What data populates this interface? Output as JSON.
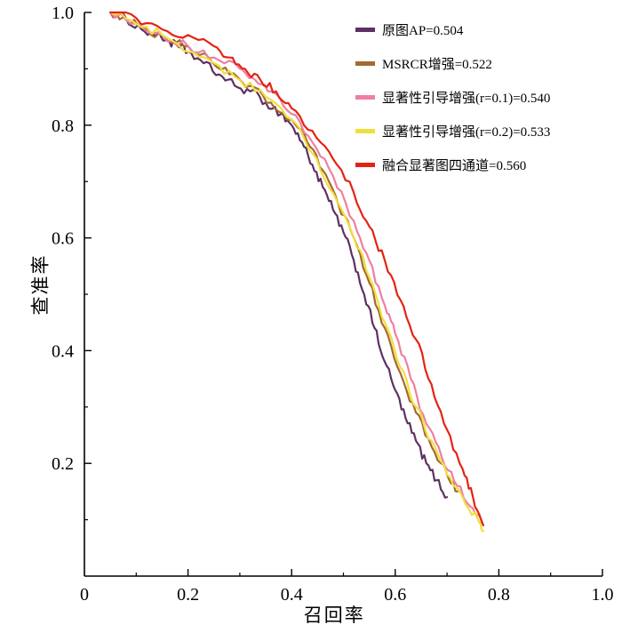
{
  "figure": {
    "xlabel": "召回率",
    "ylabel": "查准率"
  },
  "chart_data": {
    "type": "line",
    "title": "",
    "xlabel": "召回率",
    "ylabel": "查准率",
    "xlim": [
      0,
      1.0
    ],
    "ylim": [
      0,
      1.0
    ],
    "grid": false,
    "legend_position": "upper-right-inside",
    "x_ticks": [
      {
        "label": "0",
        "v": 0
      },
      {
        "label": "0.2",
        "v": 0.2
      },
      {
        "label": "0.4",
        "v": 0.4
      },
      {
        "label": "0.6",
        "v": 0.6
      },
      {
        "label": "0.8",
        "v": 0.8
      },
      {
        "label": "1.0",
        "v": 1.0
      }
    ],
    "y_ticks": [
      {
        "label": "0.2",
        "v": 0.2
      },
      {
        "label": "0.4",
        "v": 0.4
      },
      {
        "label": "0.6",
        "v": 0.6
      },
      {
        "label": "0.8",
        "v": 0.8
      },
      {
        "label": "1.0",
        "v": 1.0
      }
    ],
    "series": [
      {
        "name": "原图AP=0.504",
        "ap": 0.504,
        "color": "#5e3163",
        "x": [
          0.05,
          0.08,
          0.11,
          0.14,
          0.16,
          0.18,
          0.2,
          0.23,
          0.26,
          0.29,
          0.32,
          0.35,
          0.38,
          0.4,
          0.42,
          0.44,
          0.46,
          0.48,
          0.5,
          0.52,
          0.54,
          0.56,
          0.58,
          0.6,
          0.62,
          0.64,
          0.66,
          0.68,
          0.7
        ],
        "y": [
          1.0,
          0.99,
          0.97,
          0.96,
          0.95,
          0.94,
          0.93,
          0.91,
          0.89,
          0.87,
          0.86,
          0.84,
          0.82,
          0.8,
          0.77,
          0.73,
          0.69,
          0.65,
          0.61,
          0.56,
          0.5,
          0.44,
          0.38,
          0.33,
          0.28,
          0.24,
          0.2,
          0.17,
          0.14
        ]
      },
      {
        "name": "MSRCR增强=0.522",
        "ap": 0.522,
        "color": "#a5692f",
        "x": [
          0.05,
          0.08,
          0.12,
          0.16,
          0.2,
          0.24,
          0.28,
          0.32,
          0.36,
          0.4,
          0.43,
          0.46,
          0.49,
          0.52,
          0.55,
          0.58,
          0.61,
          0.64,
          0.67,
          0.7,
          0.72
        ],
        "y": [
          1.0,
          0.99,
          0.97,
          0.95,
          0.94,
          0.92,
          0.89,
          0.87,
          0.84,
          0.81,
          0.77,
          0.72,
          0.66,
          0.6,
          0.52,
          0.44,
          0.36,
          0.29,
          0.23,
          0.18,
          0.15
        ]
      },
      {
        "name": "显著性引导增强(r=0.1)=0.540",
        "ap": 0.54,
        "color": "#ee7fa2",
        "x": [
          0.05,
          0.1,
          0.15,
          0.2,
          0.25,
          0.3,
          0.33,
          0.36,
          0.4,
          0.44,
          0.48,
          0.52,
          0.55,
          0.58,
          0.6,
          0.63,
          0.66,
          0.69,
          0.72,
          0.75,
          0.77
        ],
        "y": [
          1.0,
          0.98,
          0.96,
          0.94,
          0.92,
          0.9,
          0.88,
          0.86,
          0.82,
          0.77,
          0.71,
          0.63,
          0.56,
          0.48,
          0.43,
          0.35,
          0.27,
          0.21,
          0.16,
          0.12,
          0.09
        ]
      },
      {
        "name": "显著性引导增强(r=0.2)=0.533",
        "ap": 0.533,
        "color": "#f0e03c",
        "x": [
          0.05,
          0.1,
          0.15,
          0.2,
          0.25,
          0.3,
          0.35,
          0.4,
          0.44,
          0.48,
          0.52,
          0.55,
          0.58,
          0.61,
          0.64,
          0.67,
          0.7,
          0.73,
          0.76,
          0.77
        ],
        "y": [
          1.0,
          0.98,
          0.96,
          0.93,
          0.91,
          0.88,
          0.85,
          0.81,
          0.75,
          0.68,
          0.6,
          0.53,
          0.45,
          0.37,
          0.3,
          0.24,
          0.18,
          0.14,
          0.1,
          0.08
        ]
      },
      {
        "name": "融合显著图四通道=0.560",
        "ap": 0.56,
        "color": "#e42313",
        "x": [
          0.05,
          0.1,
          0.15,
          0.2,
          0.25,
          0.28,
          0.31,
          0.34,
          0.37,
          0.4,
          0.44,
          0.48,
          0.52,
          0.55,
          0.58,
          0.61,
          0.64,
          0.67,
          0.7,
          0.73,
          0.75,
          0.77
        ],
        "y": [
          1.0,
          0.99,
          0.97,
          0.96,
          0.94,
          0.92,
          0.9,
          0.88,
          0.86,
          0.83,
          0.79,
          0.74,
          0.68,
          0.62,
          0.56,
          0.49,
          0.42,
          0.34,
          0.26,
          0.19,
          0.14,
          0.09
        ]
      }
    ]
  }
}
